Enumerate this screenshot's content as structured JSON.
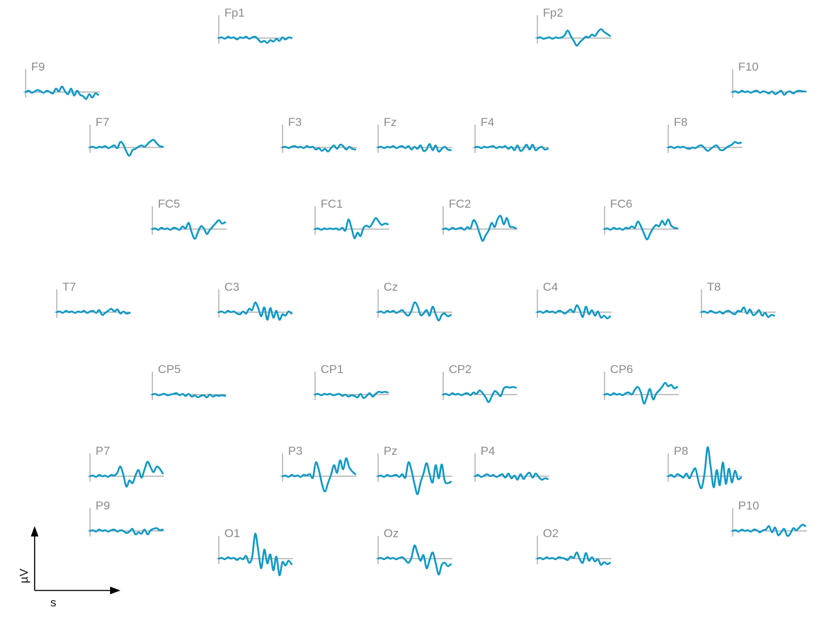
{
  "chart_data": {
    "type": "line",
    "title": "",
    "xlabel": "s",
    "ylabel": "µV",
    "colors": {
      "trace": "#0e98c4",
      "axis": "#8a8a8a",
      "label": "#8a8a8a",
      "scale": "#000000"
    },
    "channels": [
      {
        "name": "Fp1",
        "values": [
          0,
          0.1,
          -0.1,
          0.2,
          0,
          0.1,
          -0.2,
          0.1,
          0,
          0.2,
          -0.1,
          0.1,
          0.2,
          -0.2,
          -0.6,
          -0.4,
          -0.7,
          -0.3,
          -0.5,
          -0.1,
          -0.4,
          0.1,
          -0.2,
          0.1,
          0
        ]
      },
      {
        "name": "Fp2",
        "values": [
          0,
          0.1,
          -0.1,
          0,
          0.1,
          -0.1,
          0.1,
          0,
          0.1,
          0.4,
          1.1,
          0.3,
          -0.4,
          -1.1,
          -0.6,
          -0.2,
          0.2,
          0.1,
          0.5,
          0.3,
          0.9,
          1.3,
          0.9,
          0.6,
          0.3
        ]
      },
      {
        "name": "F9",
        "values": [
          0,
          0.2,
          -0.1,
          0.1,
          0.3,
          0.1,
          -0.1,
          0.2,
          0,
          -0.2,
          0.5,
          0.1,
          0.8,
          0.1,
          -0.3,
          0.5,
          -0.5,
          0.2,
          -0.4,
          -0.6,
          -1.0,
          -0.3,
          -0.8,
          -0.2,
          -0.4
        ]
      },
      {
        "name": "F10",
        "values": [
          0,
          0.1,
          -0.1,
          0.2,
          0,
          0.1,
          -0.1,
          0.1,
          0.2,
          -0.1,
          0.1,
          0,
          -0.2,
          0.1,
          -0.3,
          -0.1,
          0.2,
          -0.4,
          0,
          0.1,
          -0.2,
          0.1,
          0.2,
          0.1,
          0.1
        ]
      },
      {
        "name": "F7",
        "values": [
          0,
          0.1,
          -0.1,
          0.1,
          0,
          0.2,
          -0.1,
          0.1,
          0.3,
          -0.1,
          0.8,
          0.4,
          -0.6,
          -1.2,
          -0.4,
          -0.2,
          0.1,
          0.3,
          0.1,
          0.5,
          0.9,
          1.1,
          0.6,
          0.2,
          0.1
        ]
      },
      {
        "name": "F3",
        "values": [
          0,
          0.1,
          -0.1,
          0.1,
          0.2,
          0,
          0.1,
          -0.1,
          0.2,
          0,
          0.1,
          -0.3,
          -0.1,
          -0.5,
          -0.2,
          -0.6,
          -0.1,
          0.3,
          -0.2,
          0.4,
          0.2,
          -0.3,
          0.1,
          -0.2,
          -0.3
        ]
      },
      {
        "name": "Fz",
        "values": [
          0,
          0.1,
          -0.1,
          0.1,
          0,
          0.2,
          -0.1,
          0.1,
          0.2,
          -0.1,
          0.2,
          -0.3,
          0.1,
          -0.2,
          0.3,
          -0.5,
          -0.3,
          0.5,
          -0.4,
          0.3,
          -0.6,
          -0.2,
          0.1,
          -0.3,
          -0.4
        ]
      },
      {
        "name": "F4",
        "values": [
          0,
          0.1,
          -0.1,
          0.1,
          0,
          0.1,
          0.2,
          -0.1,
          0.1,
          0,
          0.2,
          -0.2,
          0.1,
          -0.4,
          0.3,
          -0.5,
          -0.2,
          0.4,
          -0.3,
          0.4,
          -0.4,
          -0.1,
          0.1,
          -0.3,
          -0.2
        ]
      },
      {
        "name": "F8",
        "values": [
          0,
          0.1,
          -0.1,
          0.1,
          0,
          0.1,
          -0.1,
          -0.2,
          0,
          -0.1,
          0.2,
          0.3,
          -0.1,
          -0.5,
          -0.2,
          0.1,
          0.3,
          -0.3,
          -0.4,
          -0.1,
          0.2,
          0.4,
          0.8,
          0.6,
          0.7
        ]
      },
      {
        "name": "FC5",
        "values": [
          0,
          0.1,
          -0.1,
          0.2,
          0,
          0.1,
          -0.1,
          0.2,
          0.1,
          -0.1,
          0.4,
          0.1,
          0.9,
          -0.5,
          -1.4,
          -0.5,
          0.4,
          0.1,
          -0.7,
          -0.1,
          0.4,
          0.9,
          1.3,
          0.8,
          1.0
        ]
      },
      {
        "name": "FC1",
        "values": [
          0,
          0.1,
          -0.1,
          0.1,
          0,
          0.1,
          0,
          0.1,
          -0.1,
          0.2,
          -0.2,
          1.4,
          0.2,
          -1.3,
          -0.5,
          -1.0,
          0.2,
          0.5,
          0.3,
          0.9,
          1.6,
          1.1,
          0.6,
          0.8,
          0.7
        ]
      },
      {
        "name": "FC2",
        "values": [
          0,
          0.1,
          -0.1,
          0.2,
          0,
          0.1,
          0.2,
          -0.1,
          0.3,
          0.1,
          1.3,
          0.7,
          -0.6,
          -1.7,
          -0.9,
          -0.2,
          0.9,
          0.3,
          1.5,
          1.9,
          0.7,
          1.6,
          0.4,
          0.3,
          0.1
        ]
      },
      {
        "name": "FC6",
        "values": [
          0,
          0.1,
          -0.1,
          0.2,
          0,
          0.1,
          -0.1,
          0.2,
          0.1,
          0.4,
          0.2,
          1.1,
          0.4,
          -0.6,
          -1.5,
          -0.7,
          0.1,
          0.6,
          0.4,
          1.2,
          0.6,
          1.4,
          0.5,
          0.2,
          0.1
        ]
      },
      {
        "name": "T7",
        "values": [
          0,
          0.1,
          -0.1,
          0.2,
          0,
          0.1,
          -0.1,
          0.1,
          0,
          0.2,
          -0.1,
          0.1,
          0.2,
          -0.1,
          0.3,
          -0.4,
          -0.1,
          0.2,
          0.5,
          0.1,
          0.4,
          -0.2,
          0.1,
          -0.2,
          -0.1
        ]
      },
      {
        "name": "C3",
        "values": [
          0,
          0.1,
          -0.1,
          0.2,
          0,
          0.1,
          -0.2,
          -0.3,
          0.1,
          -0.2,
          0.5,
          0.3,
          1.4,
          0.6,
          -0.6,
          0.7,
          -1.1,
          0.6,
          -0.8,
          0.2,
          -1.1,
          -0.3,
          -0.5,
          0.1,
          -0.2
        ]
      },
      {
        "name": "Cz",
        "values": [
          0,
          0.1,
          -0.1,
          0.2,
          0,
          0.2,
          -0.1,
          0.1,
          0.3,
          -0.2,
          -0.5,
          0.2,
          1.4,
          0.9,
          -0.4,
          -0.2,
          0.3,
          -0.5,
          0.8,
          -0.3,
          -1.2,
          -0.4,
          -0.2,
          -0.6,
          -0.4
        ]
      },
      {
        "name": "C4",
        "values": [
          0,
          0.1,
          -0.1,
          0.2,
          0,
          0.1,
          -0.1,
          0.2,
          0.1,
          -0.2,
          0.1,
          0.4,
          0,
          1.0,
          0.3,
          -0.7,
          0.8,
          -0.3,
          0.3,
          -0.5,
          0.1,
          -0.8,
          -0.5,
          -0.9,
          -0.6
        ]
      },
      {
        "name": "T8",
        "values": [
          0,
          0.1,
          -0.1,
          0.2,
          0,
          -0.1,
          0.1,
          -0.2,
          0.1,
          0.2,
          -0.1,
          -0.3,
          0.2,
          0.1,
          0.7,
          -0.2,
          0.4,
          -0.4,
          -0.2,
          0.3,
          -0.5,
          -0.1,
          -0.7,
          -0.4,
          -0.5
        ]
      },
      {
        "name": "CP5",
        "values": [
          0,
          0.1,
          -0.1,
          0,
          0.1,
          -0.1,
          0,
          0.1,
          0.2,
          -0.1,
          0.1,
          -0.2,
          0.1,
          -0.3,
          -0.1,
          -0.4,
          -0.2,
          -0.1,
          -0.4,
          0,
          -0.3,
          -0.1,
          -0.2,
          -0.1,
          -0.2
        ]
      },
      {
        "name": "CP1",
        "values": [
          0,
          0.1,
          -0.1,
          0.1,
          0,
          0.1,
          -0.1,
          0,
          0.1,
          -0.2,
          0,
          -0.3,
          -0.1,
          -0.2,
          -0.4,
          0.1,
          -0.5,
          -0.2,
          0.2,
          -0.3,
          0.1,
          0.4,
          0.3,
          0.4,
          0.3
        ]
      },
      {
        "name": "CP2",
        "values": [
          0,
          0.1,
          -0.1,
          0.2,
          0,
          0.1,
          -0.1,
          0.1,
          0.2,
          -0.1,
          0.3,
          0.1,
          0.6,
          0.2,
          -0.4,
          -1.1,
          -0.3,
          0.5,
          0.2,
          -0.2,
          0.9,
          1.1,
          1.0,
          1.1,
          1.0
        ]
      },
      {
        "name": "CP6",
        "values": [
          0,
          0.1,
          -0.1,
          0.2,
          0,
          0.1,
          -0.1,
          0.2,
          0.3,
          0,
          0.7,
          1.1,
          0.3,
          -1.3,
          -0.3,
          0.8,
          -0.7,
          0.1,
          0.6,
          1.1,
          1.7,
          1.2,
          1.4,
          0.9,
          1.1
        ]
      },
      {
        "name": "P7",
        "values": [
          0,
          0.1,
          -0.1,
          0.2,
          0,
          0.1,
          -0.1,
          0.2,
          0.1,
          0.5,
          1.4,
          0.2,
          -1.5,
          -0.6,
          -1.0,
          0.1,
          0.9,
          -0.2,
          1.0,
          2.1,
          1.3,
          0.6,
          1.4,
          1.1,
          0.4
        ]
      },
      {
        "name": "P3",
        "values": [
          0,
          0.1,
          -0.1,
          0.2,
          0,
          0.1,
          -0.1,
          0.2,
          0.1,
          0.3,
          -0.2,
          2.0,
          0.9,
          -1.1,
          -2.2,
          -1.0,
          0.2,
          1.6,
          0.5,
          2.3,
          1.0,
          2.6,
          1.3,
          0.7,
          0.3
        ]
      },
      {
        "name": "Pz",
        "values": [
          0,
          0.1,
          -0.1,
          0.2,
          0,
          0.1,
          0.2,
          -0.1,
          0.3,
          -0.2,
          2.0,
          0.9,
          -1.1,
          -2.6,
          -0.9,
          0.4,
          1.9,
          0.3,
          -0.9,
          1.6,
          -0.3,
          1.7,
          -0.7,
          -1.0,
          -0.8
        ]
      },
      {
        "name": "P4",
        "values": [
          0,
          0.2,
          -0.1,
          0.1,
          0.3,
          0,
          0.2,
          -0.1,
          0.1,
          0.3,
          -0.2,
          0.4,
          -0.3,
          0.1,
          -0.5,
          0.3,
          -0.4,
          0.2,
          0.5,
          -0.2,
          0.4,
          -0.1,
          -0.5,
          -0.3,
          -0.4
        ]
      },
      {
        "name": "P8",
        "values": [
          0,
          0.2,
          -0.1,
          0.3,
          0.1,
          -0.2,
          0.4,
          -0.3,
          0.6,
          1.1,
          -0.8,
          -1.7,
          0.5,
          4.2,
          1.3,
          -1.6,
          0.9,
          -1.3,
          2.0,
          -1.1,
          1.1,
          -0.9,
          0.8,
          -0.4,
          -0.2
        ]
      },
      {
        "name": "P9",
        "values": [
          0,
          0.1,
          -0.1,
          0.2,
          0,
          0.1,
          -0.1,
          0.1,
          0.2,
          -0.1,
          0.1,
          0,
          -0.3,
          -0.1,
          0.3,
          -0.5,
          -0.2,
          -0.4,
          0.2,
          -0.5,
          0.1,
          0.3,
          0.4,
          0.1,
          0.2
        ]
      },
      {
        "name": "P10",
        "values": [
          0,
          0.1,
          -0.1,
          0.2,
          0,
          0.1,
          -0.1,
          0.2,
          0.1,
          -0.2,
          0.1,
          0.2,
          0.7,
          -0.2,
          0.5,
          -0.6,
          -0.2,
          0.3,
          -0.7,
          -0.4,
          0.4,
          0.1,
          0.5,
          0.9,
          0.7
        ]
      },
      {
        "name": "O1",
        "values": [
          0,
          0.1,
          -0.1,
          0.2,
          0,
          0.1,
          -0.2,
          0.1,
          -0.1,
          0.4,
          -0.6,
          0.2,
          3.6,
          1.2,
          -1.4,
          1.3,
          -0.7,
          0.6,
          -1.7,
          0.3,
          -2.4,
          -0.5,
          -1.0,
          -0.3,
          -0.8
        ]
      },
      {
        "name": "Oz",
        "values": [
          0,
          0.1,
          -0.1,
          0.2,
          0,
          0.1,
          -0.1,
          0.1,
          0.2,
          -0.2,
          -0.6,
          0.1,
          1.9,
          0.8,
          -0.3,
          0.5,
          -1.4,
          -0.2,
          0.9,
          -0.6,
          -2.3,
          -0.9,
          -0.6,
          -1.1,
          -0.8
        ]
      },
      {
        "name": "O2",
        "values": [
          0,
          0.1,
          -0.1,
          0.2,
          0,
          0.1,
          -0.1,
          0.2,
          0.1,
          0,
          -0.2,
          0.3,
          0.1,
          0.9,
          -0.1,
          -0.6,
          0.8,
          -0.3,
          0.2,
          -0.4,
          -0.1,
          -0.9,
          -0.5,
          -0.8,
          -0.6
        ]
      }
    ]
  }
}
